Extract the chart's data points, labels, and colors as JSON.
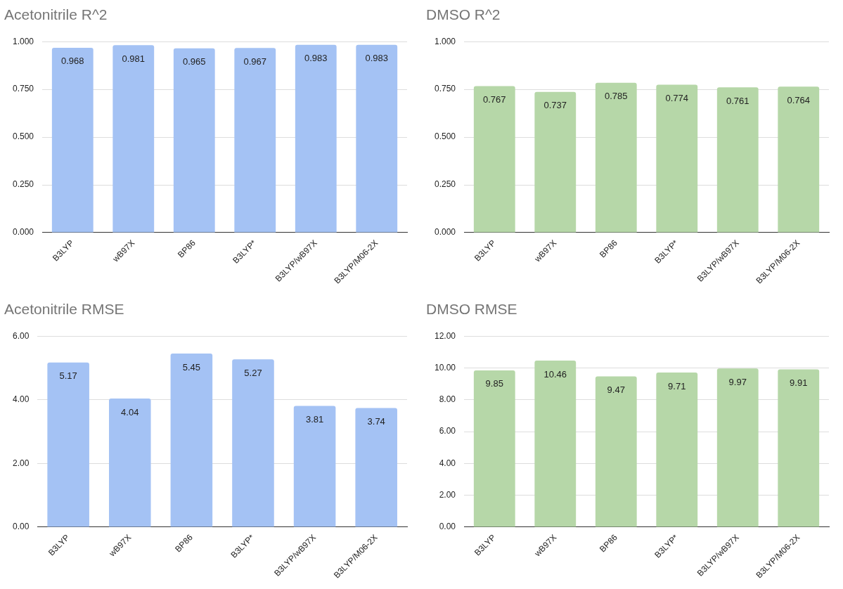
{
  "chart_data": [
    {
      "type": "bar",
      "title": "Acetonitrile R^2",
      "categories": [
        "B3LYP",
        "wB97X",
        "BP86",
        "B3LYP*",
        "B3LYP/wB97X",
        "B3LYP/M06-2X"
      ],
      "values": [
        0.968,
        0.981,
        0.965,
        0.967,
        0.983,
        0.983
      ],
      "color": "#a4c2f4",
      "ylim": [
        0,
        1
      ],
      "yticks": [
        {
          "value": 0,
          "label": "0.000"
        },
        {
          "value": 0.25,
          "label": "0.250"
        },
        {
          "value": 0.5,
          "label": "0.500"
        },
        {
          "value": 0.75,
          "label": "0.750"
        },
        {
          "value": 1,
          "label": "1.000"
        }
      ],
      "grid": "y",
      "data_labels": true
    },
    {
      "type": "bar",
      "title": "DMSO R^2",
      "categories": [
        "B3LYP",
        "wB97X",
        "BP86",
        "B3LYP*",
        "B3LYP/wB97X",
        "B3LYP/M06-2X"
      ],
      "values": [
        0.767,
        0.737,
        0.785,
        0.774,
        0.761,
        0.764
      ],
      "color": "#b6d7a8",
      "ylim": [
        0,
        1
      ],
      "yticks": [
        {
          "value": 0,
          "label": "0.000"
        },
        {
          "value": 0.25,
          "label": "0.250"
        },
        {
          "value": 0.5,
          "label": "0.500"
        },
        {
          "value": 0.75,
          "label": "0.750"
        },
        {
          "value": 1,
          "label": "1.000"
        }
      ],
      "grid": "y",
      "data_labels": true
    },
    {
      "type": "bar",
      "title": "Acetonitrile RMSE",
      "categories": [
        "B3LYP",
        "wB97X",
        "BP86",
        "B3LYP*",
        "B3LYP/wB97X",
        "B3LYP/M06-2X"
      ],
      "values": [
        5.17,
        4.04,
        5.45,
        5.27,
        3.81,
        3.74
      ],
      "color": "#a4c2f4",
      "ylim": [
        0,
        6
      ],
      "yticks": [
        {
          "value": 0,
          "label": "0.00"
        },
        {
          "value": 2,
          "label": "2.00"
        },
        {
          "value": 4,
          "label": "4.00"
        },
        {
          "value": 6,
          "label": "6.00"
        }
      ],
      "grid": "y",
      "data_labels": true
    },
    {
      "type": "bar",
      "title": "DMSO RMSE",
      "categories": [
        "B3LYP",
        "wB97X",
        "BP86",
        "B3LYP*",
        "B3LYP/wB97X",
        "B3LYP/M06-2X"
      ],
      "values": [
        9.85,
        10.46,
        9.47,
        9.71,
        9.97,
        9.91
      ],
      "color": "#b6d7a8",
      "ylim": [
        0,
        12
      ],
      "yticks": [
        {
          "value": 0,
          "label": "0.00"
        },
        {
          "value": 2,
          "label": "2.00"
        },
        {
          "value": 4,
          "label": "4.00"
        },
        {
          "value": 6,
          "label": "6.00"
        },
        {
          "value": 8,
          "label": "8.00"
        },
        {
          "value": 10,
          "label": "10.00"
        },
        {
          "value": 12,
          "label": "12.00"
        }
      ],
      "grid": "y",
      "data_labels": true
    }
  ]
}
